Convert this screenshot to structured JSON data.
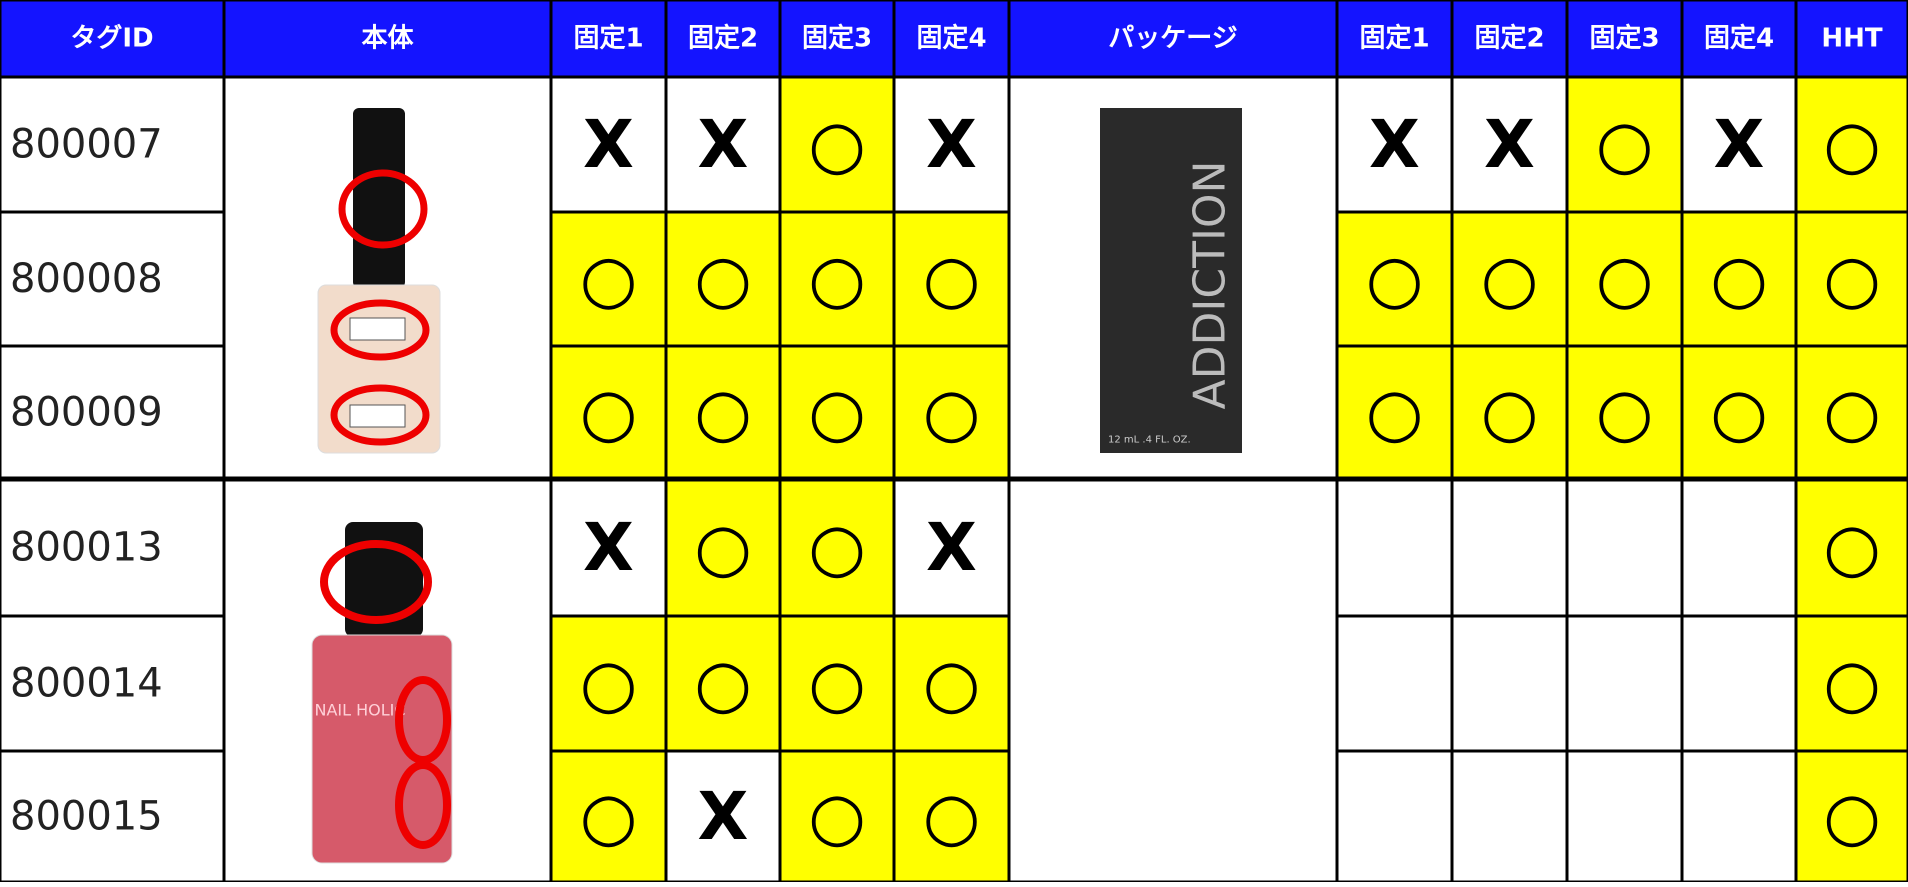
{
  "table": {
    "header": [
      "タグID",
      "本体",
      "固定1",
      "固定2",
      "固定3",
      "固定4",
      "パッケージ",
      "固定1",
      "固定2",
      "固定3",
      "固定4",
      "HHT"
    ],
    "rows": [
      [
        "800007",
        "X",
        "X",
        "○",
        "X",
        "X",
        "X",
        "○",
        "X",
        "○"
      ],
      [
        "800008",
        "○",
        "○",
        "○",
        "○",
        "○",
        "○",
        "○",
        "○",
        "○"
      ],
      [
        "800009",
        "○",
        "○",
        "○",
        "○",
        "○",
        "○",
        "○",
        "○",
        "○"
      ],
      [
        "800013",
        "X",
        "○",
        "○",
        "X",
        null,
        null,
        null,
        null,
        "○"
      ],
      [
        "800014",
        "○",
        "○",
        "○",
        "○",
        null,
        null,
        null,
        null,
        "○"
      ],
      [
        "800015",
        "○",
        "X",
        "○",
        "○",
        null,
        null,
        null,
        null,
        "○"
      ]
    ],
    "fills": {
      "○": "#ffff00",
      "X": "#ffffff"
    },
    "header_color": "#1414ff",
    "images": {
      "package_brand": "ADDICTION",
      "package_volume": "12 mL .4 FL. OZ.",
      "bottle_brand": "NAIL HOLIC"
    }
  }
}
